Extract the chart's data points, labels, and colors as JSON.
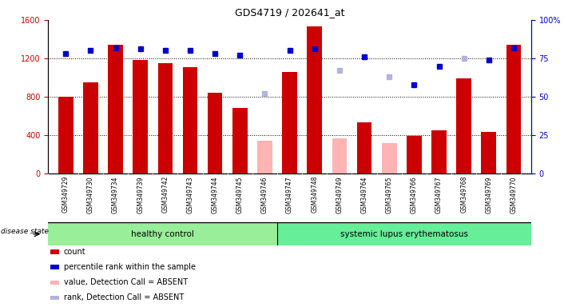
{
  "title": "GDS4719 / 202641_at",
  "samples": [
    "GSM349729",
    "GSM349730",
    "GSM349734",
    "GSM349739",
    "GSM349742",
    "GSM349743",
    "GSM349744",
    "GSM349745",
    "GSM349746",
    "GSM349747",
    "GSM349748",
    "GSM349749",
    "GSM349764",
    "GSM349765",
    "GSM349766",
    "GSM349767",
    "GSM349768",
    "GSM349769",
    "GSM349770"
  ],
  "counts": [
    800,
    950,
    1340,
    1180,
    1150,
    1110,
    840,
    680,
    null,
    1060,
    1530,
    null,
    530,
    null,
    390,
    450,
    990,
    430,
    1340
  ],
  "absent_counts": [
    null,
    null,
    null,
    null,
    null,
    null,
    null,
    null,
    340,
    null,
    null,
    370,
    null,
    320,
    null,
    null,
    null,
    null,
    null
  ],
  "percentiles": [
    78,
    80,
    82,
    81,
    80,
    80,
    78,
    77,
    null,
    80,
    81,
    null,
    76,
    null,
    58,
    70,
    null,
    74,
    82
  ],
  "absent_percentiles": [
    null,
    null,
    null,
    null,
    null,
    null,
    null,
    null,
    52,
    null,
    null,
    67,
    null,
    63,
    null,
    null,
    75,
    null,
    null
  ],
  "healthy_count": 9,
  "ylim_left": [
    0,
    1600
  ],
  "ylim_right": [
    0,
    100
  ],
  "yticks_left": [
    0,
    400,
    800,
    1200,
    1600
  ],
  "yticks_right": [
    0,
    25,
    50,
    75,
    100
  ],
  "bar_color_present": "#cc0000",
  "bar_color_absent": "#ffb3b3",
  "dot_color_present": "#0000cc",
  "dot_color_absent": "#b3b3dd",
  "healthy_bg": "#99ee99",
  "lupus_bg": "#66ee99",
  "group_label_healthy": "healthy control",
  "group_label_lupus": "systemic lupus erythematosus",
  "disease_state_label": "disease state",
  "legend_items": [
    {
      "label": "count",
      "color": "#cc0000"
    },
    {
      "label": "percentile rank within the sample",
      "color": "#0000cc"
    },
    {
      "label": "value, Detection Call = ABSENT",
      "color": "#ffb3b3"
    },
    {
      "label": "rank, Detection Call = ABSENT",
      "color": "#b3b3dd"
    }
  ]
}
